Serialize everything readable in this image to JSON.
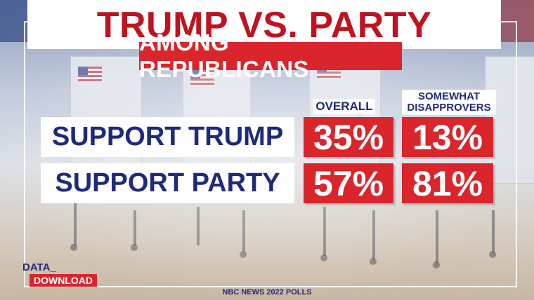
{
  "title": "TRUMP VS. PARTY",
  "subtitle": "AMONG REPUBLICANS",
  "columns": {
    "overall": "OVERALL",
    "somewhat_line1": "SOMEWHAT",
    "somewhat_line2": "DISAPPROVERS"
  },
  "rows": [
    {
      "label": "SUPPORT TRUMP",
      "overall": "35%",
      "somewhat": "13%"
    },
    {
      "label": "SUPPORT PARTY",
      "overall": "57%",
      "somewhat": "81%"
    }
  ],
  "logo": {
    "top": "DATA",
    "bottom": "DOWNLOAD"
  },
  "source": "NBC NEWS 2022 POLLS",
  "colors": {
    "accent_red": "#d9252b",
    "title_red": "#c1121f",
    "navy": "#1f2a7a"
  }
}
